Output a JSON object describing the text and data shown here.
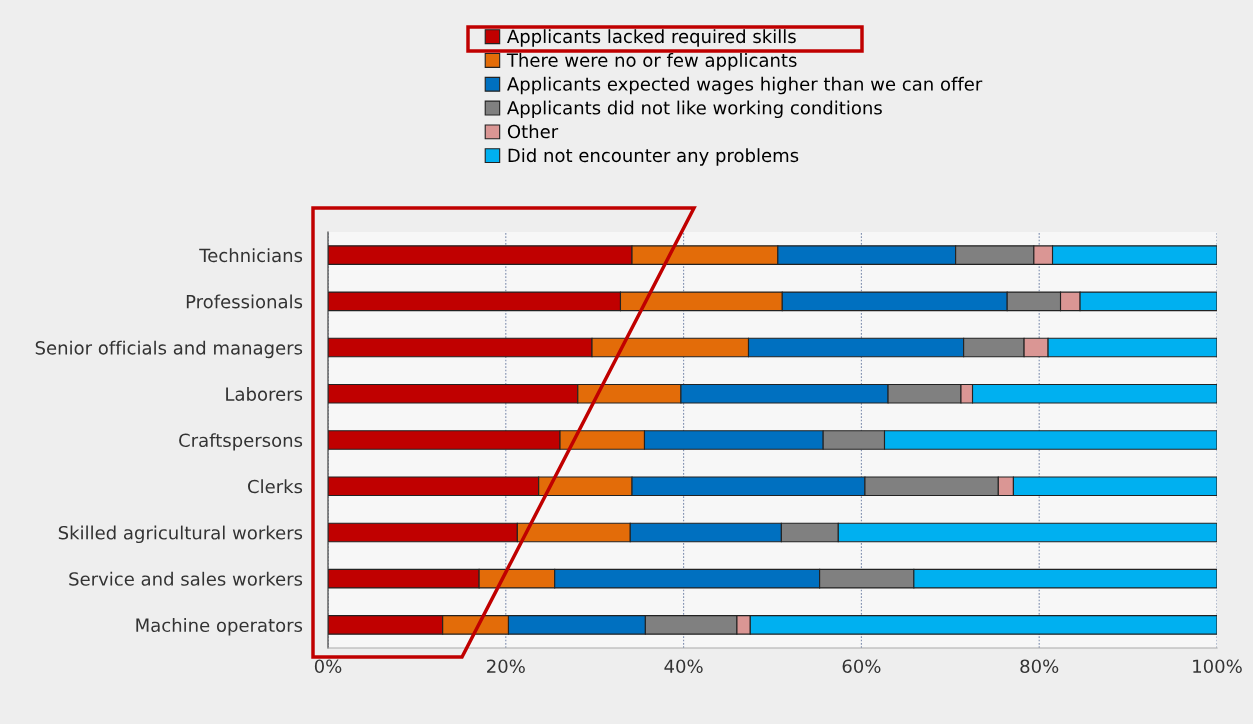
{
  "chart_data": {
    "type": "bar",
    "orientation": "horizontal",
    "stacked": true,
    "categories": [
      "Technicians",
      "Professionals",
      "Senior officials and managers",
      "Laborers",
      "Craftspersons",
      "Clerks",
      "Skilled agricultural workers",
      "Service and sales workers",
      "Machine operators"
    ],
    "series": [
      {
        "name": "Applicants lacked required skills",
        "color": "#c00000",
        "values": [
          34.2,
          32.9,
          29.7,
          28.1,
          26.1,
          23.7,
          21.3,
          17.0,
          12.9
        ]
      },
      {
        "name": "There were no or few applicants",
        "color": "#e36c09",
        "values": [
          16.4,
          18.2,
          17.6,
          11.6,
          9.5,
          10.5,
          12.7,
          8.5,
          7.4
        ]
      },
      {
        "name": "Applicants expected wages higher than we can offer",
        "color": "#0070c0",
        "values": [
          20.0,
          25.3,
          24.2,
          23.3,
          20.1,
          26.2,
          17.0,
          29.8,
          15.4
        ]
      },
      {
        "name": "Applicants did not like working conditions",
        "color": "#808080",
        "values": [
          8.8,
          6.0,
          6.8,
          8.2,
          6.9,
          15.0,
          6.4,
          10.6,
          10.3
        ]
      },
      {
        "name": "Other",
        "color": "#da9694",
        "values": [
          2.1,
          2.2,
          2.7,
          1.3,
          null,
          1.7,
          null,
          null,
          1.5
        ]
      },
      {
        "name": "Did not encounter any problems",
        "color": "#00b0f0",
        "values": [
          18.5,
          15.4,
          19.0,
          27.5,
          37.4,
          22.9,
          42.6,
          34.1,
          52.5
        ]
      }
    ],
    "xlim": [
      0,
      100
    ],
    "xticks": [
      {
        "value": 0,
        "label": "0%"
      },
      {
        "value": 20,
        "label": "20%"
      },
      {
        "value": 40,
        "label": "40%"
      },
      {
        "value": 60,
        "label": "60%"
      },
      {
        "value": 80,
        "label": "80%"
      },
      {
        "value": 100,
        "label": "100%"
      }
    ],
    "grid": "x",
    "legend": "top"
  }
}
